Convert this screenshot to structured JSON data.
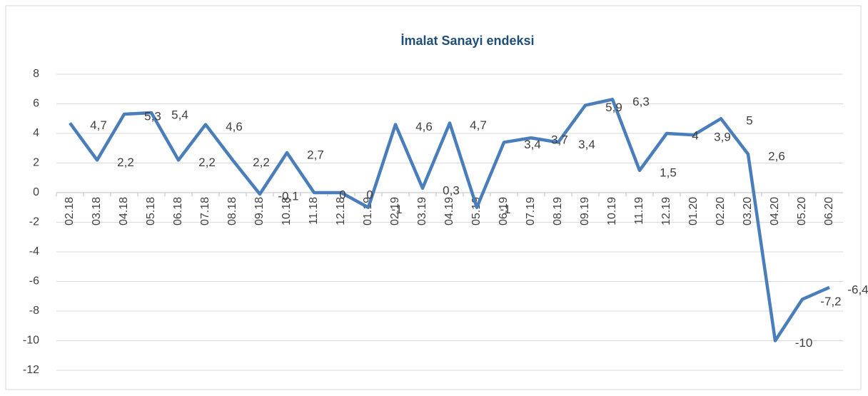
{
  "chart_data": {
    "type": "line",
    "title": "İmalat Sanayi endeksi",
    "categories": [
      "02.18",
      "03.18",
      "04.18",
      "05.18",
      "06.18",
      "07.18",
      "08.18",
      "09.18",
      "10.18",
      "11.18",
      "12.18",
      "01.19",
      "02.19",
      "03.19",
      "04.19",
      "05.19",
      "06.19",
      "07.19",
      "08.19",
      "09.19",
      "10.19",
      "11.19",
      "12.19",
      "01.20",
      "02.20",
      "03.20",
      "04.20",
      "05.20",
      "06.20"
    ],
    "values": [
      4.7,
      2.2,
      5.3,
      5.4,
      2.2,
      4.6,
      2.2,
      -0.1,
      2.7,
      0,
      0,
      -1,
      4.6,
      0.3,
      4.7,
      -1,
      3.4,
      3.7,
      3.4,
      5.9,
      6.3,
      1.5,
      4,
      3.9,
      5,
      2.6,
      -10,
      -7.2,
      -6.4
    ],
    "value_labels": [
      "4,7",
      "2,2",
      "5,3",
      "5,4",
      "2,2",
      "4,6",
      "2,2",
      "-0,1",
      "2,7",
      "0",
      "0",
      "-1",
      "4,6",
      "0,3",
      "4,7",
      "-1",
      "3,4",
      "3,7",
      "3,4",
      "5,9",
      "6,3",
      "1,5",
      "4",
      "3,9",
      "5",
      "2,6",
      "-10",
      "-7,2",
      "-6,4"
    ],
    "color": "#4a7ebb",
    "ylim": [
      -12,
      8
    ],
    "yticks": [
      -12,
      -10,
      -8,
      -6,
      -4,
      -2,
      0,
      2,
      4,
      6,
      8
    ],
    "grid": true
  }
}
